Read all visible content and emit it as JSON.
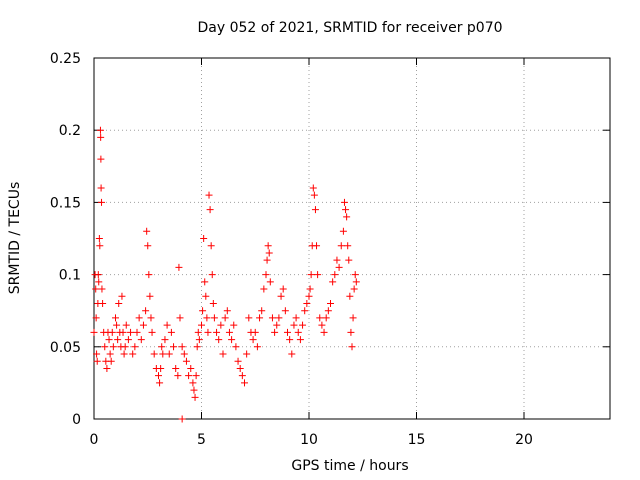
{
  "chart_data": {
    "type": "scatter",
    "title": "Day 052 of 2021, SRMTID for receiver p070",
    "xlabel": "GPS time / hours",
    "ylabel": "SRMTID / TECUs",
    "xlim": [
      0,
      24
    ],
    "ylim": [
      0,
      0.25
    ],
    "x_ticks": [
      0,
      5,
      10,
      15,
      20
    ],
    "x_tick_labels": [
      "0",
      "5",
      "10",
      "15",
      "20"
    ],
    "y_ticks": [
      0,
      0.05,
      0.1,
      0.15,
      0.2,
      0.25
    ],
    "y_tick_labels": [
      "0",
      "0.05",
      "0.1",
      "0.15",
      "0.2",
      "0.25"
    ],
    "grid": true,
    "marker": "+",
    "series": [
      {
        "name": "SRMTID",
        "color": "#ff0000",
        "points": [
          [
            0.0,
            0.06
          ],
          [
            0.05,
            0.1
          ],
          [
            0.08,
            0.09
          ],
          [
            0.1,
            0.07
          ],
          [
            0.12,
            0.045
          ],
          [
            0.15,
            0.04
          ],
          [
            0.18,
            0.08
          ],
          [
            0.2,
            0.1
          ],
          [
            0.22,
            0.095
          ],
          [
            0.25,
            0.125
          ],
          [
            0.27,
            0.12
          ],
          [
            0.3,
            0.2
          ],
          [
            0.31,
            0.195
          ],
          [
            0.32,
            0.18
          ],
          [
            0.33,
            0.16
          ],
          [
            0.35,
            0.15
          ],
          [
            0.37,
            0.09
          ],
          [
            0.4,
            0.08
          ],
          [
            0.45,
            0.06
          ],
          [
            0.5,
            0.05
          ],
          [
            0.55,
            0.04
          ],
          [
            0.6,
            0.035
          ],
          [
            0.65,
            0.06
          ],
          [
            0.7,
            0.055
          ],
          [
            0.75,
            0.045
          ],
          [
            0.8,
            0.04
          ],
          [
            0.85,
            0.06
          ],
          [
            0.9,
            0.05
          ],
          [
            1.0,
            0.07
          ],
          [
            1.05,
            0.065
          ],
          [
            1.1,
            0.055
          ],
          [
            1.15,
            0.08
          ],
          [
            1.2,
            0.06
          ],
          [
            1.25,
            0.05
          ],
          [
            1.3,
            0.085
          ],
          [
            1.35,
            0.06
          ],
          [
            1.4,
            0.045
          ],
          [
            1.45,
            0.05
          ],
          [
            1.5,
            0.065
          ],
          [
            1.6,
            0.055
          ],
          [
            1.7,
            0.06
          ],
          [
            1.8,
            0.045
          ],
          [
            1.9,
            0.05
          ],
          [
            2.0,
            0.06
          ],
          [
            2.1,
            0.07
          ],
          [
            2.2,
            0.055
          ],
          [
            2.3,
            0.065
          ],
          [
            2.4,
            0.075
          ],
          [
            2.45,
            0.13
          ],
          [
            2.5,
            0.12
          ],
          [
            2.55,
            0.1
          ],
          [
            2.6,
            0.085
          ],
          [
            2.65,
            0.07
          ],
          [
            2.7,
            0.06
          ],
          [
            2.8,
            0.045
          ],
          [
            2.9,
            0.035
          ],
          [
            3.0,
            0.03
          ],
          [
            3.05,
            0.025
          ],
          [
            3.1,
            0.035
          ],
          [
            3.15,
            0.05
          ],
          [
            3.2,
            0.045
          ],
          [
            3.3,
            0.055
          ],
          [
            3.4,
            0.065
          ],
          [
            3.5,
            0.045
          ],
          [
            3.6,
            0.06
          ],
          [
            3.7,
            0.05
          ],
          [
            3.8,
            0.035
          ],
          [
            3.9,
            0.03
          ],
          [
            3.95,
            0.105
          ],
          [
            4.0,
            0.07
          ],
          [
            4.1,
            0.05
          ],
          [
            4.2,
            0.045
          ],
          [
            4.3,
            0.04
          ],
          [
            4.4,
            0.03
          ],
          [
            4.5,
            0.035
          ],
          [
            4.6,
            0.025
          ],
          [
            4.65,
            0.02
          ],
          [
            4.7,
            0.015
          ],
          [
            4.75,
            0.03
          ],
          [
            4.8,
            0.05
          ],
          [
            4.85,
            0.06
          ],
          [
            4.9,
            0.055
          ],
          [
            5.0,
            0.065
          ],
          [
            5.05,
            0.075
          ],
          [
            5.1,
            0.125
          ],
          [
            5.15,
            0.095
          ],
          [
            5.2,
            0.085
          ],
          [
            5.25,
            0.07
          ],
          [
            5.3,
            0.06
          ],
          [
            5.35,
            0.155
          ],
          [
            5.4,
            0.145
          ],
          [
            5.45,
            0.12
          ],
          [
            5.5,
            0.1
          ],
          [
            5.55,
            0.08
          ],
          [
            5.6,
            0.07
          ],
          [
            5.7,
            0.06
          ],
          [
            5.8,
            0.055
          ],
          [
            5.9,
            0.065
          ],
          [
            6.0,
            0.045
          ],
          [
            6.1,
            0.07
          ],
          [
            6.2,
            0.075
          ],
          [
            6.3,
            0.06
          ],
          [
            6.4,
            0.055
          ],
          [
            6.5,
            0.065
          ],
          [
            6.6,
            0.05
          ],
          [
            6.7,
            0.04
          ],
          [
            6.8,
            0.035
          ],
          [
            6.9,
            0.03
          ],
          [
            7.0,
            0.025
          ],
          [
            7.1,
            0.045
          ],
          [
            7.2,
            0.07
          ],
          [
            7.3,
            0.06
          ],
          [
            7.4,
            0.055
          ],
          [
            7.5,
            0.06
          ],
          [
            7.6,
            0.05
          ],
          [
            7.7,
            0.07
          ],
          [
            7.8,
            0.075
          ],
          [
            7.9,
            0.09
          ],
          [
            8.0,
            0.1
          ],
          [
            8.05,
            0.11
          ],
          [
            8.1,
            0.12
          ],
          [
            8.15,
            0.115
          ],
          [
            8.2,
            0.095
          ],
          [
            8.3,
            0.07
          ],
          [
            8.4,
            0.06
          ],
          [
            8.5,
            0.065
          ],
          [
            8.6,
            0.07
          ],
          [
            8.7,
            0.085
          ],
          [
            8.8,
            0.09
          ],
          [
            8.9,
            0.075
          ],
          [
            9.0,
            0.06
          ],
          [
            9.1,
            0.055
          ],
          [
            9.2,
            0.045
          ],
          [
            9.3,
            0.065
          ],
          [
            9.4,
            0.07
          ],
          [
            9.5,
            0.06
          ],
          [
            9.6,
            0.055
          ],
          [
            9.7,
            0.065
          ],
          [
            9.8,
            0.075
          ],
          [
            9.9,
            0.08
          ],
          [
            10.0,
            0.085
          ],
          [
            10.05,
            0.09
          ],
          [
            10.1,
            0.1
          ],
          [
            10.15,
            0.12
          ],
          [
            10.2,
            0.16
          ],
          [
            10.25,
            0.155
          ],
          [
            10.3,
            0.145
          ],
          [
            10.35,
            0.12
          ],
          [
            10.4,
            0.1
          ],
          [
            10.5,
            0.07
          ],
          [
            10.6,
            0.065
          ],
          [
            10.7,
            0.06
          ],
          [
            10.8,
            0.07
          ],
          [
            10.9,
            0.075
          ],
          [
            11.0,
            0.08
          ],
          [
            11.1,
            0.095
          ],
          [
            11.2,
            0.1
          ],
          [
            11.3,
            0.11
          ],
          [
            11.4,
            0.105
          ],
          [
            11.5,
            0.12
          ],
          [
            11.6,
            0.13
          ],
          [
            11.65,
            0.15
          ],
          [
            11.7,
            0.145
          ],
          [
            11.75,
            0.14
          ],
          [
            11.8,
            0.12
          ],
          [
            11.85,
            0.11
          ],
          [
            11.9,
            0.085
          ],
          [
            11.95,
            0.06
          ],
          [
            12.0,
            0.05
          ],
          [
            12.05,
            0.07
          ],
          [
            12.1,
            0.09
          ],
          [
            12.15,
            0.1
          ],
          [
            12.2,
            0.095
          ],
          [
            4.1,
            0.0
          ]
        ]
      }
    ]
  }
}
